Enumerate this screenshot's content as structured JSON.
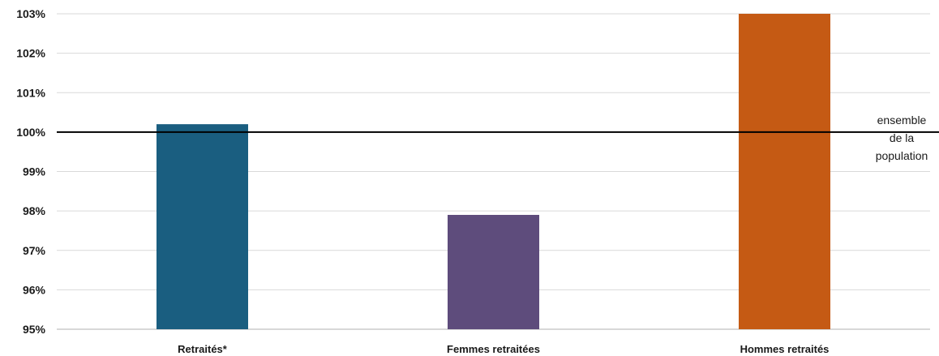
{
  "chart_data": {
    "type": "bar",
    "categories": [
      "Retraités*",
      "Femmes retraitées",
      "Hommes retraités"
    ],
    "values": [
      100.2,
      97.9,
      103.0
    ],
    "colors": [
      "#1a5e80",
      "#5e4c7c",
      "#c55a14"
    ],
    "ylim": [
      95,
      103
    ],
    "yticks": [
      "95%",
      "96%",
      "97%",
      "98%",
      "99%",
      "100%",
      "101%",
      "102%",
      "103%"
    ],
    "grid": true,
    "reference_line": {
      "value": 100,
      "label_lines": [
        "ensemble",
        "de la",
        "population"
      ],
      "color": "#000000"
    },
    "title": "",
    "xlabel": "",
    "ylabel": ""
  }
}
